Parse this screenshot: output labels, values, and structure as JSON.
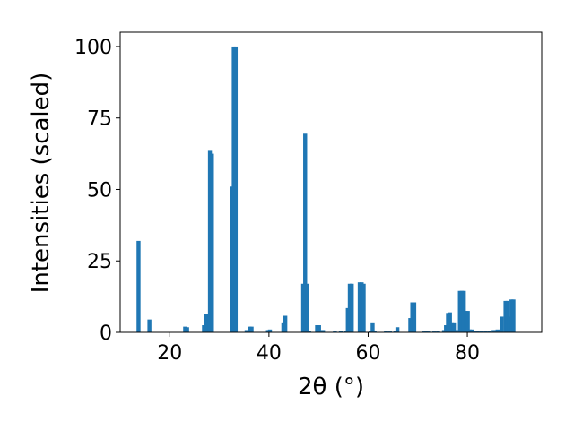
{
  "chart_data": {
    "type": "bar",
    "title": "",
    "xlabel": "2θ (°)",
    "ylabel": "Intensities (scaled)",
    "xlim": [
      10,
      95
    ],
    "ylim": [
      0,
      105
    ],
    "x_ticks": [
      20,
      40,
      60,
      80
    ],
    "y_ticks": [
      0,
      25,
      50,
      75,
      100
    ],
    "bar_color": "#1f77b4",
    "grid": false,
    "legend": "none",
    "bar_width": 0.8,
    "x": [
      13.7,
      15.9,
      23.1,
      23.5,
      26.9,
      27.3,
      27.7,
      28.1,
      28.5,
      32.5,
      32.9,
      33.3,
      35.5,
      36.1,
      36.5,
      39.8,
      40.2,
      42.9,
      43.3,
      46.9,
      47.3,
      47.7,
      48.1,
      49.7,
      50.1,
      50.9,
      53.3,
      54.5,
      55.5,
      55.9,
      56.3,
      56.7,
      58.3,
      58.7,
      59.1,
      60.5,
      60.9,
      61.3,
      63.6,
      64.4,
      65.5,
      65.9,
      68.5,
      68.9,
      69.3,
      71.3,
      71.7,
      72.1,
      73.3,
      74.1,
      75.3,
      75.7,
      76.1,
      76.5,
      76.9,
      77.3,
      77.7,
      78.5,
      78.9,
      79.3,
      79.7,
      80.1,
      80.5,
      80.9,
      81.3,
      82.1,
      82.9,
      83.7,
      84.5,
      85.3,
      85.7,
      86.1,
      86.9,
      87.7,
      88.1,
      88.5,
      88.9,
      89.3
    ],
    "values": [
      32,
      4.5,
      2,
      1.8,
      2.5,
      6.5,
      6.5,
      63.5,
      62.5,
      51,
      100,
      100,
      0.8,
      2,
      2,
      0.8,
      1,
      3.5,
      5.8,
      17,
      69.5,
      17,
      0.5,
      2.5,
      2.5,
      0.8,
      0.3,
      0.5,
      0.5,
      8.5,
      17,
      17,
      17.5,
      17.5,
      17,
      0.6,
      3.5,
      0.6,
      0.5,
      0.3,
      0.6,
      1.8,
      5,
      10.5,
      10.5,
      0.3,
      0.4,
      0.3,
      0.3,
      0.5,
      0.8,
      2.5,
      6.8,
      7,
      3.5,
      3.5,
      0.8,
      14.5,
      14.5,
      14.5,
      7.5,
      7.5,
      1,
      1,
      0.5,
      0.4,
      0.4,
      0.4,
      0.4,
      0.8,
      0.8,
      1,
      5.5,
      11,
      11,
      5.5,
      11.5,
      11.5
    ]
  }
}
